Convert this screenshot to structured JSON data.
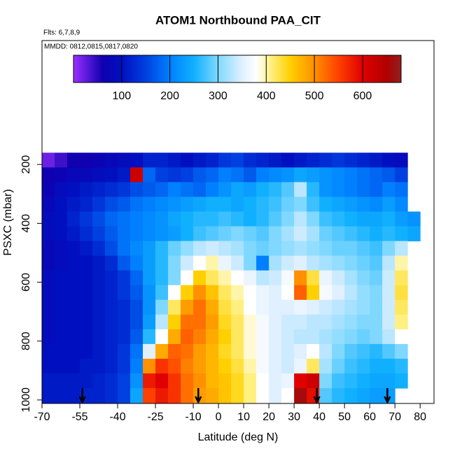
{
  "chart_data": {
    "type": "heatmap",
    "title": "ATOM1 Northbound PAA_CIT",
    "subtitle": "Flts: 6,7,8,9",
    "annotation": "MMDD: 0812,0815,0817,0820",
    "x_label": "Latitude (deg N)",
    "y_label": "PSXC (mbar)",
    "xlim": [
      -70,
      85.5
    ],
    "ylim": [
      1012,
      -221
    ],
    "xticks": [
      -70,
      -55,
      -40,
      -25,
      -10,
      0,
      10,
      20,
      30,
      40,
      50,
      60,
      70,
      80
    ],
    "yticks": [
      200,
      400,
      600,
      800,
      1000
    ],
    "clim": [
      0,
      680
    ],
    "cticks": [
      100,
      200,
      300,
      400,
      500,
      600
    ],
    "colorscale": [
      [
        0,
        "#9b30ff"
      ],
      [
        60,
        "#1000b0"
      ],
      [
        100,
        "#0010c0"
      ],
      [
        150,
        "#0040e0"
      ],
      [
        200,
        "#0080ff"
      ],
      [
        250,
        "#10b0ff"
      ],
      [
        300,
        "#80d8ff"
      ],
      [
        350,
        "#e0f0ff"
      ],
      [
        380,
        "#ffffff"
      ],
      [
        410,
        "#fff080"
      ],
      [
        450,
        "#ffd000"
      ],
      [
        500,
        "#ff9000"
      ],
      [
        550,
        "#ff4000"
      ],
      [
        600,
        "#e00000"
      ],
      [
        650,
        "#b00000"
      ],
      [
        680,
        "#902020"
      ]
    ],
    "lat_edges": [
      -70,
      -65,
      -60,
      -55,
      -50,
      -45,
      -40,
      -35,
      -30,
      -25,
      -20,
      -15,
      -10,
      -5,
      0,
      5,
      10,
      15,
      20,
      25,
      30,
      35,
      40,
      45,
      50,
      55,
      60,
      65,
      70,
      75,
      80
    ],
    "pressure_edges": [
      160,
      210,
      260,
      310,
      360,
      410,
      460,
      510,
      560,
      610,
      660,
      710,
      760,
      810,
      860,
      910,
      960,
      1010
    ],
    "values": [
      [
        20,
        40,
        60,
        60,
        70,
        80,
        90,
        100,
        120,
        120,
        110,
        100,
        110,
        120,
        140,
        150,
        130,
        120,
        110,
        100,
        110,
        120,
        130,
        140,
        130,
        120,
        110,
        100,
        90,
        null
      ],
      [
        60,
        70,
        80,
        80,
        90,
        100,
        110,
        620,
        180,
        150,
        140,
        150,
        170,
        180,
        200,
        190,
        170,
        200,
        210,
        220,
        240,
        230,
        220,
        210,
        200,
        190,
        180,
        170,
        150,
        null
      ],
      [
        70,
        90,
        100,
        110,
        120,
        130,
        140,
        160,
        170,
        180,
        200,
        190,
        180,
        200,
        220,
        240,
        230,
        250,
        260,
        280,
        330,
        260,
        220,
        210,
        200,
        190,
        180,
        200,
        190,
        null
      ],
      [
        80,
        100,
        110,
        120,
        140,
        160,
        170,
        190,
        200,
        210,
        220,
        230,
        240,
        250,
        250,
        240,
        250,
        260,
        270,
        290,
        300,
        270,
        250,
        240,
        230,
        220,
        210,
        230,
        210,
        null
      ],
      [
        90,
        100,
        120,
        140,
        160,
        180,
        190,
        200,
        210,
        220,
        240,
        250,
        260,
        260,
        270,
        260,
        250,
        260,
        280,
        300,
        330,
        300,
        270,
        260,
        250,
        240,
        240,
        250,
        230,
        220
      ],
      [
        90,
        100,
        110,
        130,
        150,
        170,
        190,
        200,
        210,
        220,
        230,
        250,
        270,
        280,
        290,
        300,
        290,
        280,
        300,
        320,
        340,
        320,
        290,
        280,
        270,
        260,
        250,
        260,
        250,
        240
      ],
      [
        80,
        90,
        100,
        110,
        130,
        160,
        190,
        210,
        230,
        260,
        290,
        310,
        330,
        340,
        330,
        320,
        300,
        290,
        300,
        310,
        320,
        310,
        300,
        290,
        290,
        280,
        270,
        300,
        330,
        null
      ],
      [
        80,
        90,
        100,
        100,
        110,
        130,
        170,
        200,
        230,
        260,
        300,
        340,
        380,
        400,
        360,
        340,
        300,
        200,
        320,
        340,
        350,
        330,
        320,
        310,
        300,
        290,
        280,
        330,
        400,
        null
      ],
      [
        90,
        100,
        100,
        100,
        110,
        120,
        140,
        180,
        230,
        260,
        300,
        380,
        450,
        420,
        400,
        380,
        360,
        330,
        340,
        370,
        500,
        430,
        360,
        340,
        320,
        300,
        290,
        340,
        420,
        null
      ],
      [
        90,
        100,
        100,
        100,
        110,
        120,
        140,
        170,
        220,
        270,
        380,
        450,
        500,
        460,
        420,
        400,
        380,
        360,
        350,
        380,
        530,
        450,
        370,
        350,
        330,
        310,
        300,
        340,
        430,
        null
      ],
      [
        90,
        100,
        100,
        100,
        110,
        120,
        130,
        160,
        220,
        300,
        420,
        490,
        520,
        480,
        430,
        410,
        380,
        360,
        350,
        350,
        360,
        350,
        340,
        330,
        320,
        310,
        300,
        340,
        420,
        null
      ],
      [
        90,
        100,
        100,
        100,
        110,
        120,
        130,
        160,
        230,
        330,
        450,
        520,
        520,
        490,
        440,
        420,
        390,
        370,
        350,
        340,
        340,
        330,
        330,
        320,
        310,
        300,
        300,
        340,
        410,
        null
      ],
      [
        90,
        100,
        100,
        100,
        110,
        120,
        130,
        170,
        260,
        380,
        480,
        530,
        510,
        480,
        450,
        420,
        390,
        370,
        350,
        340,
        330,
        330,
        320,
        310,
        300,
        290,
        300,
        330,
        380,
        null
      ],
      [
        100,
        100,
        100,
        100,
        110,
        120,
        140,
        190,
        350,
        480,
        530,
        520,
        490,
        470,
        440,
        420,
        390,
        370,
        350,
        340,
        350,
        380,
        330,
        300,
        280,
        270,
        260,
        280,
        300,
        null
      ],
      [
        100,
        100,
        100,
        110,
        110,
        120,
        140,
        200,
        500,
        560,
        540,
        510,
        490,
        470,
        450,
        430,
        400,
        370,
        350,
        340,
        360,
        420,
        320,
        290,
        270,
        260,
        250,
        250,
        260,
        null
      ],
      [
        110,
        110,
        110,
        110,
        120,
        130,
        150,
        220,
        580,
        600,
        560,
        520,
        500,
        470,
        460,
        440,
        410,
        380,
        350,
        360,
        600,
        620,
        300,
        270,
        260,
        250,
        240,
        240,
        250,
        null
      ],
      [
        110,
        110,
        110,
        120,
        120,
        130,
        150,
        240,
        550,
        580,
        560,
        520,
        490,
        480,
        460,
        440,
        410,
        380,
        350,
        380,
        660,
        590,
        280,
        260,
        250,
        240,
        230,
        230,
        null,
        null
      ]
    ],
    "arrows": [
      -54,
      -8,
      39,
      67
    ]
  }
}
